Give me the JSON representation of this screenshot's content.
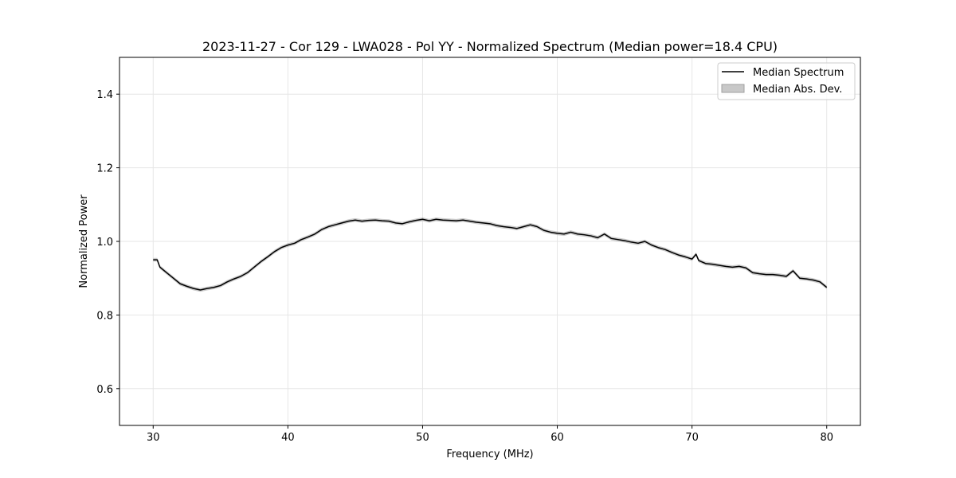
{
  "chart_data": {
    "type": "line",
    "title": "2023-11-27 - Cor 129 - LWA028 - Pol YY - Normalized Spectrum (Median power=18.4 CPU)",
    "xlabel": "Frequency (MHz)",
    "ylabel": "Normalized Power",
    "xlim": [
      27.5,
      82.5
    ],
    "ylim": [
      0.5,
      1.5
    ],
    "xticks": [
      30,
      40,
      50,
      60,
      70,
      80
    ],
    "yticks": [
      0.6,
      0.8,
      1.0,
      1.2,
      1.4
    ],
    "xtick_labels": [
      "30",
      "40",
      "50",
      "60",
      "70",
      "80"
    ],
    "ytick_labels": [
      "0.6",
      "0.8",
      "1.0",
      "1.2",
      "1.4"
    ],
    "grid": true,
    "legend_position": "top-right",
    "series": [
      {
        "name": "Median Spectrum",
        "kind": "line",
        "color": "#000000",
        "x": [
          30.0,
          30.3,
          30.5,
          31.0,
          31.5,
          32.0,
          32.5,
          33.0,
          33.5,
          34.0,
          34.5,
          35.0,
          35.5,
          36.0,
          36.5,
          37.0,
          37.5,
          38.0,
          38.5,
          39.0,
          39.5,
          40.0,
          40.5,
          41.0,
          41.5,
          42.0,
          42.5,
          43.0,
          43.5,
          44.0,
          44.5,
          45.0,
          45.5,
          46.0,
          46.5,
          47.0,
          47.5,
          48.0,
          48.5,
          49.0,
          49.5,
          50.0,
          50.5,
          51.0,
          51.5,
          52.0,
          52.5,
          53.0,
          53.5,
          54.0,
          54.5,
          55.0,
          55.5,
          56.0,
          56.5,
          57.0,
          57.5,
          58.0,
          58.5,
          59.0,
          59.5,
          60.0,
          60.5,
          61.0,
          61.5,
          62.0,
          62.5,
          63.0,
          63.5,
          64.0,
          64.5,
          65.0,
          65.5,
          66.0,
          66.5,
          67.0,
          67.5,
          68.0,
          68.5,
          69.0,
          69.5,
          70.0,
          70.3,
          70.5,
          71.0,
          71.5,
          72.0,
          72.5,
          73.0,
          73.5,
          74.0,
          74.5,
          75.0,
          75.5,
          76.0,
          76.5,
          77.0,
          77.5,
          78.0,
          78.5,
          79.0,
          79.5,
          80.0
        ],
        "y": [
          0.95,
          0.95,
          0.93,
          0.915,
          0.9,
          0.885,
          0.878,
          0.872,
          0.868,
          0.872,
          0.875,
          0.88,
          0.89,
          0.898,
          0.905,
          0.915,
          0.93,
          0.945,
          0.958,
          0.972,
          0.983,
          0.99,
          0.995,
          1.005,
          1.012,
          1.02,
          1.032,
          1.04,
          1.045,
          1.05,
          1.055,
          1.058,
          1.055,
          1.057,
          1.058,
          1.056,
          1.055,
          1.05,
          1.048,
          1.053,
          1.057,
          1.06,
          1.056,
          1.06,
          1.058,
          1.057,
          1.056,
          1.058,
          1.055,
          1.052,
          1.05,
          1.048,
          1.043,
          1.04,
          1.038,
          1.035,
          1.04,
          1.045,
          1.04,
          1.03,
          1.025,
          1.022,
          1.02,
          1.025,
          1.02,
          1.018,
          1.015,
          1.01,
          1.02,
          1.008,
          1.005,
          1.002,
          0.998,
          0.995,
          1.0,
          0.99,
          0.983,
          0.978,
          0.97,
          0.963,
          0.958,
          0.952,
          0.965,
          0.948,
          0.94,
          0.938,
          0.935,
          0.932,
          0.93,
          0.932,
          0.928,
          0.915,
          0.912,
          0.91,
          0.91,
          0.908,
          0.905,
          0.92,
          0.9,
          0.898,
          0.895,
          0.89,
          0.875
        ]
      },
      {
        "name": "Median Abs. Dev.",
        "kind": "band",
        "color": "#a0a0a0",
        "half_width": 0.005
      }
    ]
  }
}
